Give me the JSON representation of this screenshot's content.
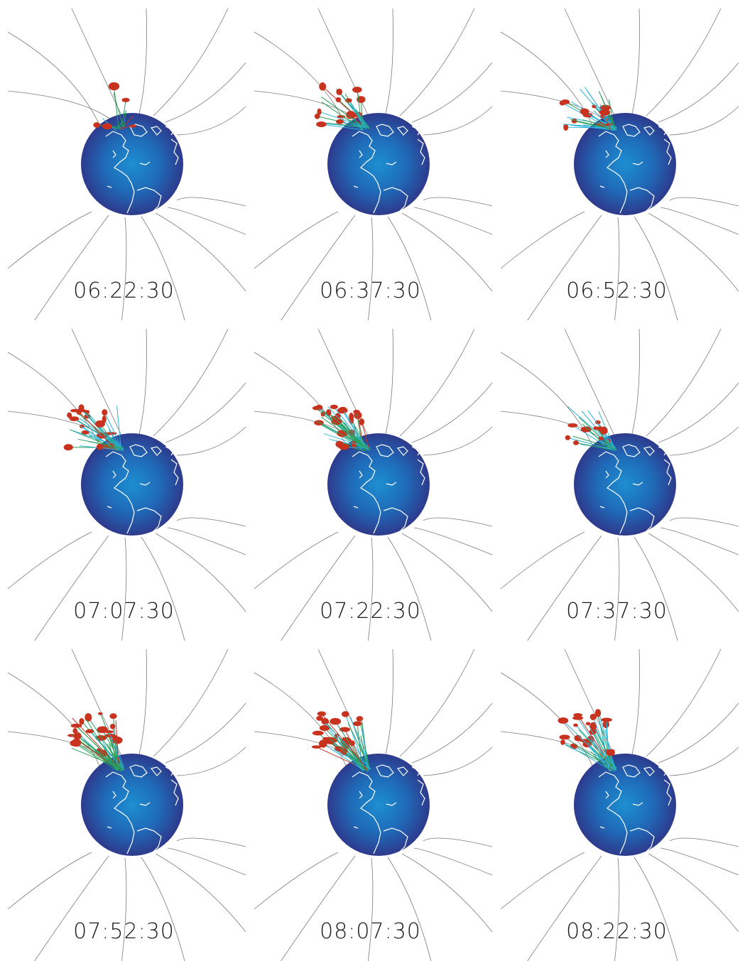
{
  "panels": [
    {
      "time": "06:22:30",
      "bundle": "small",
      "cyan": 0.15
    },
    {
      "time": "06:37:30",
      "bundle": "medium",
      "cyan": 0.45
    },
    {
      "time": "06:52:30",
      "bundle": "large",
      "cyan": 0.55
    },
    {
      "time": "07:07:30",
      "bundle": "large",
      "cyan": 0.45
    },
    {
      "time": "07:22:30",
      "bundle": "large",
      "cyan": 0.3
    },
    {
      "time": "07:37:30",
      "bundle": "medium",
      "cyan": 0.6
    },
    {
      "time": "07:52:30",
      "bundle": "large",
      "cyan": 0.2
    },
    {
      "time": "08:07:30",
      "bundle": "large",
      "cyan": 0.25
    },
    {
      "time": "08:22:30",
      "bundle": "large",
      "cyan": 0.55
    }
  ],
  "colors": {
    "globe_center": "#1e8fd0",
    "globe_edge": "#2e3a8c",
    "coastline": "#ffffff",
    "field_line": "#7a7a7a",
    "plasma_red": "#c8331f",
    "plasma_green": "#2aa05a",
    "plasma_cyan": "#2bb4d8"
  }
}
